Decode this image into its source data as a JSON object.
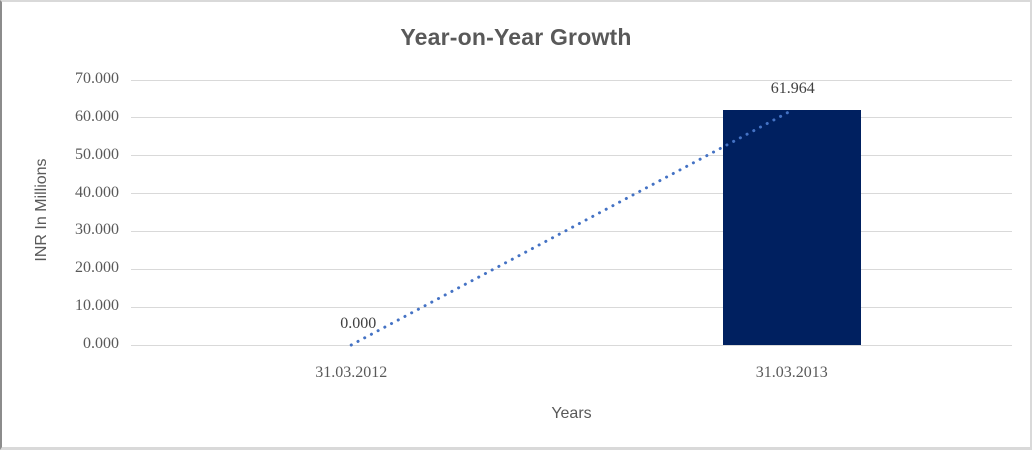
{
  "chart_data": {
    "type": "bar",
    "title": "Year-on-Year Growth",
    "xlabel": "Years",
    "ylabel": "INR In Millions",
    "categories": [
      "31.03.2012",
      "31.03.2013"
    ],
    "values": [
      0.0,
      61.964
    ],
    "data_labels": [
      "0.000",
      "61.964"
    ],
    "y_ticks": [
      0,
      10,
      20,
      30,
      40,
      50,
      60,
      70
    ],
    "y_tick_labels": [
      "0.000",
      "10.000",
      "20.000",
      "30.000",
      "40.000",
      "50.000",
      "60.000",
      "70.000"
    ],
    "ylim": [
      0,
      70
    ],
    "grid": true,
    "legend": "none",
    "trendline": {
      "style": "dotted",
      "from_category_index": 0,
      "to_category_index": 1,
      "from_value": 0.0,
      "to_value": 61.964
    },
    "colors": {
      "bar": "#002060",
      "trendline": "#4472C4",
      "gridline": "#d9d9d9",
      "title_text": "#595959",
      "axis_text": "#595959",
      "label_text": "#404040"
    }
  }
}
